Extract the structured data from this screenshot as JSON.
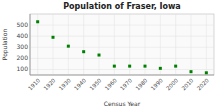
{
  "chart_data": {
    "type": "scatter",
    "title": "Population of Fraser, Iowa",
    "xlabel": "Census Year",
    "ylabel": "Population",
    "x": [
      1910,
      1920,
      1930,
      1940,
      1950,
      1960,
      1970,
      1980,
      1990,
      2000,
      2010,
      2020
    ],
    "values": [
      530,
      390,
      310,
      260,
      230,
      130,
      130,
      130,
      110,
      130,
      80,
      70
    ],
    "color": "#008000",
    "marker": "square",
    "xlim": [
      1905,
      2025
    ],
    "xticks": [
      1910,
      1920,
      1930,
      1940,
      1950,
      1960,
      1970,
      1980,
      1990,
      2000,
      2010,
      2020
    ],
    "ylim": [
      50,
      600
    ],
    "yticks": [
      100,
      200,
      300,
      400,
      500
    ],
    "grid": true
  }
}
